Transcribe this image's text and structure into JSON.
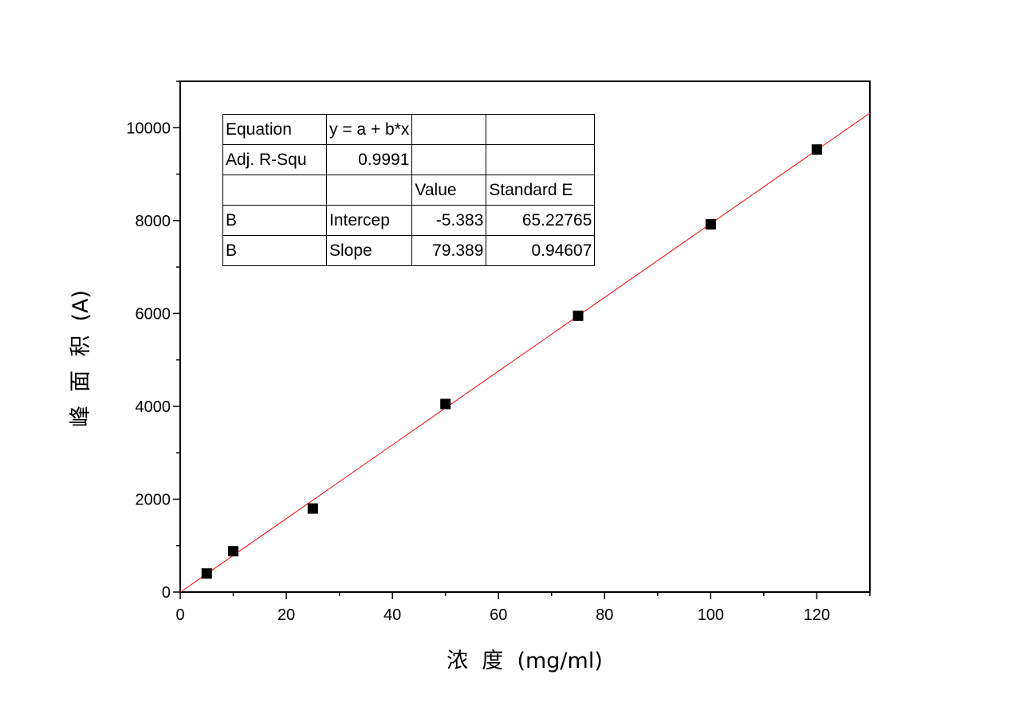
{
  "chart_data": {
    "type": "scatter",
    "title": "",
    "xlabel": "浓  度  (mg/ml)",
    "ylabel": "峰  面  积  (A)",
    "xlim": [
      0,
      130
    ],
    "ylim": [
      0,
      11000
    ],
    "x_ticks": [
      0,
      20,
      40,
      60,
      80,
      100,
      120
    ],
    "y_ticks": [
      0,
      2000,
      4000,
      6000,
      8000,
      10000
    ],
    "grid": false,
    "series": [
      {
        "marker": "square",
        "color": "#000000",
        "x": [
          5,
          10,
          25,
          50,
          75,
          100,
          120
        ],
        "y": [
          400,
          880,
          1800,
          4050,
          5950,
          7920,
          9530
        ]
      }
    ],
    "fit_line": {
      "type": "linear",
      "intercept": -5.383,
      "slope": 79.389,
      "color": "#ff0000"
    },
    "stats_table": {
      "rows": [
        [
          "Equation",
          "y = a + b*x",
          "",
          ""
        ],
        [
          "Adj. R-Squ",
          "0.9991",
          "",
          ""
        ],
        [
          "",
          "",
          "Value",
          "Standard E"
        ],
        [
          "B",
          "Intercep",
          "-5.383",
          "65.22765"
        ],
        [
          "B",
          "Slope",
          "79.389",
          "0.94607"
        ]
      ]
    }
  }
}
